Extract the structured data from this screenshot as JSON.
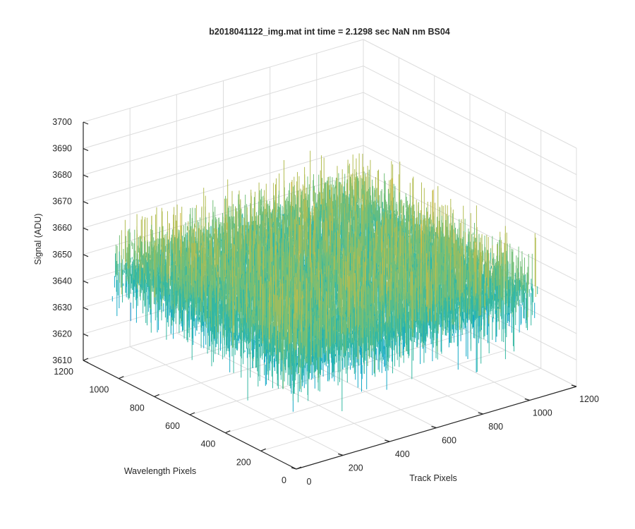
{
  "chart_data": {
    "type": "surface-3d",
    "title": "b2018041122_img.mat int time = 2.1298 sec  NaN nm BS04",
    "xlabel": "Track Pixels",
    "ylabel": "Wavelength Pixels",
    "zlabel": "Signal (ADU)",
    "x_ticks": [
      "0",
      "200",
      "400",
      "600",
      "800",
      "1000",
      "1200"
    ],
    "y_ticks": [
      "0",
      "200",
      "400",
      "600",
      "800",
      "1000",
      "1200"
    ],
    "z_ticks": [
      "3610",
      "3620",
      "3630",
      "3640",
      "3650",
      "3660",
      "3670",
      "3680",
      "3690",
      "3700"
    ],
    "xlim": [
      0,
      1200
    ],
    "ylim": [
      0,
      1200
    ],
    "zlim": [
      3610,
      3700
    ],
    "data_extent": {
      "x": [
        0,
        1024
      ],
      "y": [
        0,
        1024
      ]
    },
    "mean_signal": 3651,
    "noise_range": [
      3623,
      3692
    ],
    "grid": true,
    "colormap": "parula",
    "colors": [
      "#0072bd",
      "#0f8fd0",
      "#13a9c7",
      "#35b8a2",
      "#73bf78",
      "#b3bd52",
      "#d9b83c",
      "#edb120"
    ]
  }
}
